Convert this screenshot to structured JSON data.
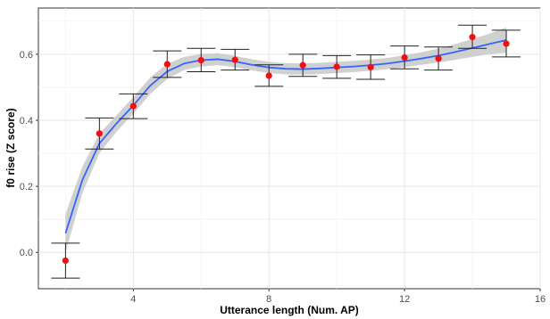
{
  "chart_data": {
    "type": "scatter",
    "xlabel": "Utterance length (Num. AP)",
    "ylabel": "f0 rise (Z score)",
    "xlim": [
      1.2,
      16
    ],
    "ylim": [
      -0.11,
      0.74
    ],
    "x_ticks": [
      4,
      8,
      12,
      16
    ],
    "y_ticks": [
      0.0,
      0.2,
      0.4,
      0.6
    ],
    "x_tick_labels": [
      "4",
      "8",
      "12",
      "16"
    ],
    "y_tick_labels": [
      "0.0",
      "0.2",
      "0.4",
      "0.6"
    ],
    "grid": true,
    "legend": "none",
    "points": {
      "x": [
        2,
        3,
        4,
        5,
        6,
        7,
        8,
        9,
        10,
        11,
        12,
        13,
        14,
        15
      ],
      "y": [
        -0.025,
        0.36,
        0.443,
        0.57,
        0.582,
        0.583,
        0.535,
        0.567,
        0.562,
        0.561,
        0.59,
        0.587,
        0.652,
        0.632
      ],
      "err_low": [
        -0.078,
        0.313,
        0.405,
        0.53,
        0.547,
        0.552,
        0.503,
        0.533,
        0.527,
        0.524,
        0.556,
        0.552,
        0.618,
        0.592
      ],
      "err_high": [
        0.028,
        0.407,
        0.48,
        0.61,
        0.618,
        0.615,
        0.568,
        0.6,
        0.596,
        0.598,
        0.625,
        0.622,
        0.688,
        0.673
      ],
      "color": "#ee1111"
    },
    "smooth": {
      "x": [
        2,
        2.5,
        3,
        3.5,
        4,
        4.5,
        5,
        5.5,
        6,
        6.5,
        7,
        7.5,
        8,
        8.5,
        9,
        9.5,
        10,
        10.5,
        11,
        11.5,
        12,
        12.5,
        13,
        13.5,
        14,
        14.5,
        15
      ],
      "y": [
        0.058,
        0.22,
        0.33,
        0.39,
        0.445,
        0.505,
        0.548,
        0.572,
        0.582,
        0.585,
        0.578,
        0.568,
        0.56,
        0.556,
        0.555,
        0.557,
        0.56,
        0.563,
        0.567,
        0.572,
        0.579,
        0.587,
        0.596,
        0.607,
        0.619,
        0.631,
        0.643
      ],
      "ci_low": [
        0.0,
        0.18,
        0.3,
        0.365,
        0.42,
        0.48,
        0.525,
        0.552,
        0.563,
        0.567,
        0.561,
        0.551,
        0.543,
        0.539,
        0.538,
        0.54,
        0.543,
        0.546,
        0.55,
        0.555,
        0.561,
        0.568,
        0.575,
        0.583,
        0.592,
        0.6,
        0.605
      ],
      "ci_high": [
        0.116,
        0.26,
        0.36,
        0.415,
        0.47,
        0.53,
        0.571,
        0.592,
        0.601,
        0.603,
        0.595,
        0.585,
        0.577,
        0.573,
        0.572,
        0.574,
        0.577,
        0.58,
        0.584,
        0.589,
        0.597,
        0.606,
        0.617,
        0.631,
        0.646,
        0.662,
        0.681
      ],
      "line_color": "#3366ff",
      "band_color": "#c8c8c8"
    }
  }
}
